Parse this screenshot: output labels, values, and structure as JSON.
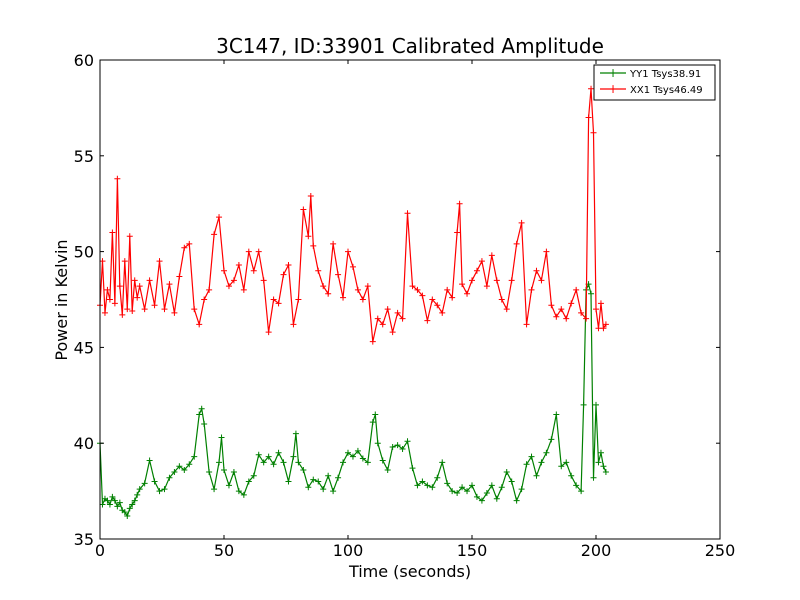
{
  "chart_data": {
    "type": "line",
    "title": "3C147, ID:33901 Calibrated Amplitude",
    "xlabel": "Time (seconds)",
    "ylabel": "Power in Kelvin",
    "xlim": [
      0,
      250
    ],
    "ylim": [
      35,
      60
    ],
    "xticks": [
      0,
      50,
      100,
      150,
      200,
      250
    ],
    "yticks": [
      35,
      40,
      45,
      50,
      55,
      60
    ],
    "grid": false,
    "legend_position": "top-right",
    "marker": "+",
    "series": [
      {
        "name": "YY1 Tsys38.91",
        "color": "#008000",
        "x": [
          0,
          1,
          2,
          3,
          4,
          5,
          6,
          7,
          8,
          9,
          10,
          11,
          12,
          13,
          14,
          15,
          16,
          18,
          20,
          22,
          24,
          26,
          28,
          30,
          32,
          34,
          36,
          38,
          40,
          41,
          42,
          44,
          46,
          48,
          49,
          50,
          52,
          54,
          56,
          58,
          60,
          62,
          64,
          66,
          68,
          70,
          72,
          74,
          76,
          78,
          79,
          80,
          82,
          84,
          86,
          88,
          90,
          92,
          94,
          96,
          98,
          100,
          102,
          104,
          106,
          108,
          110,
          111,
          112,
          114,
          116,
          118,
          120,
          122,
          124,
          126,
          128,
          130,
          132,
          134,
          136,
          138,
          140,
          142,
          144,
          146,
          148,
          150,
          152,
          154,
          156,
          158,
          160,
          162,
          164,
          166,
          168,
          170,
          172,
          174,
          176,
          178,
          180,
          182,
          184,
          186,
          188,
          190,
          192,
          194,
          195,
          196,
          197,
          198,
          199,
          200,
          201,
          202,
          203,
          204
        ],
        "values": [
          40.0,
          36.8,
          37.1,
          37.0,
          36.8,
          37.2,
          37.0,
          36.7,
          36.9,
          36.5,
          36.4,
          36.2,
          36.6,
          36.8,
          37.0,
          37.3,
          37.6,
          37.9,
          39.1,
          38.0,
          37.5,
          37.6,
          38.2,
          38.5,
          38.8,
          38.6,
          38.9,
          39.3,
          41.5,
          41.8,
          41.0,
          38.5,
          37.6,
          39.0,
          40.3,
          38.6,
          37.8,
          38.5,
          37.5,
          37.3,
          38.0,
          38.3,
          39.4,
          39.0,
          39.3,
          38.9,
          39.5,
          39.0,
          38.0,
          39.3,
          40.5,
          39.0,
          38.6,
          37.7,
          38.1,
          38.0,
          37.6,
          38.3,
          37.5,
          38.2,
          39.0,
          39.5,
          39.3,
          39.6,
          39.2,
          39.0,
          41.1,
          41.5,
          40.0,
          39.1,
          38.6,
          39.8,
          39.9,
          39.7,
          40.1,
          38.7,
          37.8,
          38.0,
          37.8,
          37.7,
          38.2,
          39.0,
          37.9,
          37.5,
          37.4,
          37.7,
          37.5,
          37.8,
          37.2,
          37.0,
          37.4,
          37.8,
          37.1,
          37.7,
          38.5,
          38.0,
          37.0,
          37.6,
          38.9,
          39.3,
          38.3,
          39.0,
          39.5,
          40.2,
          41.5,
          38.8,
          39.0,
          38.3,
          37.8,
          37.5,
          42.0,
          48.0,
          48.3,
          47.8,
          38.2,
          42.0,
          39.0,
          39.5,
          38.8,
          38.5
        ]
      },
      {
        "name": "XX1 Tsys46.49",
        "color": "#ff0000",
        "x": [
          0,
          1,
          2,
          3,
          4,
          5,
          6,
          7,
          8,
          9,
          10,
          11,
          12,
          13,
          14,
          15,
          16,
          18,
          20,
          22,
          24,
          26,
          28,
          30,
          32,
          34,
          36,
          38,
          40,
          42,
          44,
          46,
          48,
          50,
          52,
          54,
          56,
          58,
          60,
          62,
          64,
          66,
          68,
          70,
          72,
          74,
          76,
          78,
          80,
          82,
          84,
          85,
          86,
          88,
          90,
          92,
          94,
          96,
          98,
          100,
          102,
          104,
          106,
          108,
          110,
          112,
          114,
          116,
          118,
          120,
          122,
          124,
          126,
          128,
          130,
          132,
          134,
          136,
          138,
          140,
          142,
          144,
          145,
          146,
          148,
          150,
          152,
          154,
          156,
          158,
          160,
          162,
          164,
          166,
          168,
          170,
          172,
          174,
          176,
          178,
          180,
          182,
          184,
          186,
          188,
          190,
          192,
          194,
          196,
          197,
          198,
          199,
          200,
          201,
          202,
          203,
          204
        ],
        "values": [
          47.2,
          49.5,
          46.8,
          48.0,
          47.5,
          51.0,
          47.3,
          53.8,
          48.2,
          46.7,
          49.5,
          47.0,
          50.8,
          46.9,
          48.5,
          47.6,
          48.2,
          47.0,
          48.5,
          47.2,
          49.5,
          47.0,
          48.3,
          46.8,
          48.7,
          50.2,
          50.4,
          47.0,
          46.2,
          47.5,
          48.0,
          50.9,
          51.8,
          49.0,
          48.2,
          48.5,
          49.3,
          48.0,
          50.0,
          49.0,
          50.0,
          48.5,
          45.8,
          47.5,
          47.3,
          48.8,
          49.3,
          46.2,
          47.5,
          52.2,
          50.8,
          52.9,
          50.3,
          49.0,
          48.2,
          47.8,
          50.4,
          48.8,
          47.6,
          50.0,
          49.2,
          48.0,
          47.5,
          48.2,
          45.3,
          46.5,
          46.2,
          47.0,
          45.8,
          46.8,
          46.5,
          52.0,
          48.2,
          48.0,
          47.7,
          46.4,
          47.5,
          47.2,
          46.8,
          48.0,
          47.6,
          51.0,
          52.5,
          48.3,
          47.8,
          48.5,
          49.0,
          49.5,
          48.2,
          49.8,
          48.5,
          47.5,
          47.0,
          48.5,
          50.4,
          51.5,
          46.2,
          48.0,
          49.0,
          48.5,
          50.0,
          47.2,
          46.6,
          47.0,
          46.5,
          47.3,
          48.0,
          46.8,
          46.5,
          57.0,
          58.5,
          56.2,
          47.0,
          46.0,
          47.3,
          46.0,
          46.2
        ]
      }
    ]
  }
}
